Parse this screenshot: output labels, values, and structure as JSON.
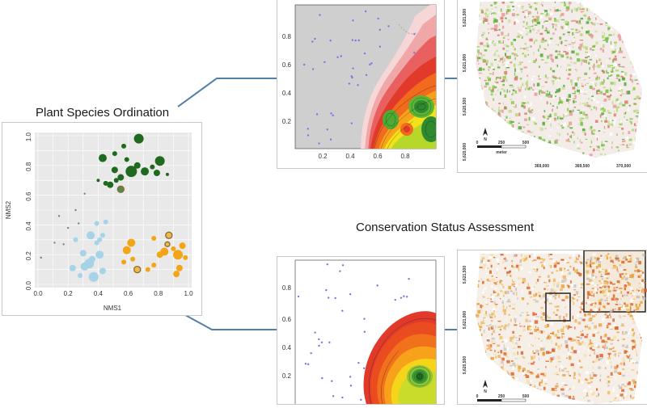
{
  "titles": {
    "ordination": "Plant Species Ordination",
    "conservation": "Conservation Status Assessment"
  },
  "colors": {
    "green_dark": "#1f6a1f",
    "orange": "#f2a516",
    "light_blue": "#a7d3e8",
    "grey_point": "#808080",
    "contour_red": "#e23a2a",
    "contour_yellow": "#f4e11a",
    "contour_green": "#2ea12e",
    "connector": "#4f7fa8"
  },
  "ordination": {
    "xlabel": "NMS1",
    "ylabel": "NMS2",
    "xticks": [
      "0.0",
      "0.2",
      "0.4",
      "0.6",
      "0.8",
      "1.0"
    ],
    "yticks": [
      "0.0",
      "0.2",
      "0.4",
      "0.6",
      "0.8",
      "1.0"
    ]
  },
  "contour_top": {
    "xticks": [
      "0.2",
      "0.4",
      "0.6",
      "0.8"
    ],
    "yticks": [
      "0.2",
      "0.4",
      "0.6",
      "0.8"
    ]
  },
  "contour_bottom": {
    "yticks": [
      "0.2",
      "0.4",
      "0.6",
      "0.8"
    ]
  },
  "map_top": {
    "yticks": [
      "5,621,500",
      "5,621,000",
      "5,620,500",
      "5,620,000"
    ],
    "xticks": [
      "369,000",
      "369,500",
      "370,000"
    ],
    "scale_labels": [
      "0",
      "250",
      "500"
    ],
    "scale_unit": "meter",
    "north": "N"
  },
  "map_bottom": {
    "yticks": [
      "5,621,500",
      "5,621,000",
      "5,620,500"
    ],
    "scale_labels": [
      "0",
      "250",
      "500"
    ],
    "north": "N"
  },
  "chart_data": [
    {
      "type": "scatter",
      "title": "Plant Species Ordination",
      "xlabel": "NMS1",
      "ylabel": "NMS2",
      "xlim": [
        0,
        1
      ],
      "ylim": [
        0,
        1
      ],
      "grid": true,
      "series": [
        {
          "color": "#1f6a1f",
          "points": [
            {
              "x": 0.67,
              "y": 0.98,
              "s": 6
            },
            {
              "x": 0.57,
              "y": 0.93,
              "s": 3
            },
            {
              "x": 0.51,
              "y": 0.88,
              "s": 3
            },
            {
              "x": 0.43,
              "y": 0.85,
              "s": 5
            },
            {
              "x": 0.59,
              "y": 0.84,
              "s": 3
            },
            {
              "x": 0.81,
              "y": 0.83,
              "s": 6
            },
            {
              "x": 0.66,
              "y": 0.8,
              "s": 4
            },
            {
              "x": 0.76,
              "y": 0.79,
              "s": 3
            },
            {
              "x": 0.51,
              "y": 0.77,
              "s": 4
            },
            {
              "x": 0.62,
              "y": 0.76,
              "s": 7
            },
            {
              "x": 0.71,
              "y": 0.76,
              "s": 5
            },
            {
              "x": 0.79,
              "y": 0.75,
              "s": 4
            },
            {
              "x": 0.4,
              "y": 0.7,
              "s": 2
            },
            {
              "x": 0.45,
              "y": 0.68,
              "s": 3
            },
            {
              "x": 0.48,
              "y": 0.67,
              "s": 4
            },
            {
              "x": 0.52,
              "y": 0.7,
              "s": 3
            },
            {
              "x": 0.55,
              "y": 0.72,
              "s": 4
            },
            {
              "x": 0.86,
              "y": 0.74,
              "s": 2
            },
            {
              "x": 0.55,
              "y": 0.64,
              "s": 4,
              "ring": true
            }
          ]
        },
        {
          "color": "#f2a516",
          "points": [
            {
              "x": 0.96,
              "y": 0.26,
              "s": 4
            },
            {
              "x": 0.87,
              "y": 0.33,
              "s": 4,
              "ring": true
            },
            {
              "x": 0.77,
              "y": 0.31,
              "s": 3
            },
            {
              "x": 0.9,
              "y": 0.24,
              "s": 3
            },
            {
              "x": 0.59,
              "y": 0.23,
              "s": 5
            },
            {
              "x": 0.84,
              "y": 0.22,
              "s": 5
            },
            {
              "x": 0.63,
              "y": 0.17,
              "s": 3
            },
            {
              "x": 0.81,
              "y": 0.2,
              "s": 4
            },
            {
              "x": 0.93,
              "y": 0.2,
              "s": 6
            },
            {
              "x": 0.66,
              "y": 0.1,
              "s": 4,
              "ring": true
            },
            {
              "x": 0.57,
              "y": 0.15,
              "s": 3
            },
            {
              "x": 0.77,
              "y": 0.13,
              "s": 3
            },
            {
              "x": 0.73,
              "y": 0.1,
              "s": 3
            },
            {
              "x": 0.92,
              "y": 0.07,
              "s": 4
            },
            {
              "x": 0.98,
              "y": 0.18,
              "s": 3
            },
            {
              "x": 0.62,
              "y": 0.28,
              "s": 5
            },
            {
              "x": 0.86,
              "y": 0.27,
              "s": 3,
              "ring": true
            },
            {
              "x": 0.94,
              "y": 0.11,
              "s": 4
            }
          ]
        },
        {
          "color": "#a7d3e8",
          "points": [
            {
              "x": 0.45,
              "y": 0.42,
              "s": 3
            },
            {
              "x": 0.43,
              "y": 0.33,
              "s": 3
            },
            {
              "x": 0.35,
              "y": 0.33,
              "s": 5
            },
            {
              "x": 0.41,
              "y": 0.3,
              "s": 3
            },
            {
              "x": 0.25,
              "y": 0.3,
              "s": 3
            },
            {
              "x": 0.39,
              "y": 0.28,
              "s": 3
            },
            {
              "x": 0.3,
              "y": 0.21,
              "s": 4
            },
            {
              "x": 0.41,
              "y": 0.2,
              "s": 5
            },
            {
              "x": 0.34,
              "y": 0.14,
              "s": 6
            },
            {
              "x": 0.36,
              "y": 0.17,
              "s": 4
            },
            {
              "x": 0.31,
              "y": 0.12,
              "s": 5
            },
            {
              "x": 0.23,
              "y": 0.11,
              "s": 4
            },
            {
              "x": 0.43,
              "y": 0.09,
              "s": 4
            },
            {
              "x": 0.37,
              "y": 0.05,
              "s": 6
            },
            {
              "x": 0.28,
              "y": 0.06,
              "s": 3
            },
            {
              "x": 0.39,
              "y": 0.41,
              "s": 3
            }
          ]
        },
        {
          "color": "#808080",
          "points": [
            {
              "x": 0.02,
              "y": 0.18,
              "s": 1.2
            },
            {
              "x": 0.11,
              "y": 0.28,
              "s": 1.2
            },
            {
              "x": 0.14,
              "y": 0.46,
              "s": 1.2
            },
            {
              "x": 0.25,
              "y": 0.5,
              "s": 1.2
            },
            {
              "x": 0.31,
              "y": 0.61,
              "s": 1.2
            },
            {
              "x": 0.27,
              "y": 0.41,
              "s": 1.2
            },
            {
              "x": 0.2,
              "y": 0.38,
              "s": 1.2
            },
            {
              "x": 0.17,
              "y": 0.27,
              "s": 1.2
            }
          ]
        }
      ]
    }
  ]
}
